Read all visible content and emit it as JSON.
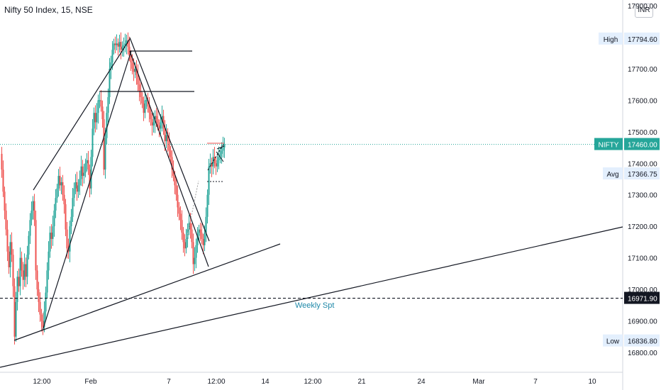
{
  "header": {
    "symbol_title": "Nifty 50 Index, 15, NSE",
    "currency": "INR"
  },
  "chart_data": {
    "type": "candlestick",
    "title": "Nifty 50 Index, 15, NSE",
    "ylim": [
      16750,
      18000
    ],
    "y_ticks": [
      "17900.00",
      "17800.00",
      "17700.00",
      "17600.00",
      "17500.00",
      "17400.00",
      "17300.00",
      "17200.00",
      "17100.00",
      "17000.00",
      "16900.00",
      "16800.00"
    ],
    "y_tick_values": [
      17900,
      17800,
      17700,
      17600,
      17500,
      17400,
      17300,
      17200,
      17100,
      17000,
      16900,
      16800
    ],
    "x_ticks": [
      "12:00",
      "Feb",
      "7",
      "12:00",
      "14",
      "12:00",
      "21",
      "24",
      "Mar",
      "7",
      "10"
    ],
    "price_labels": {
      "high": {
        "label": "High",
        "value": "17794.60"
      },
      "last": {
        "label": "NIFTY",
        "value": "17460.00"
      },
      "avg": {
        "label": "Avg",
        "value": "17366.75"
      },
      "support": {
        "value": "16971.90"
      },
      "low": {
        "label": "Low",
        "value": "16836.80"
      }
    },
    "annotations": [
      "Weekly Spt"
    ],
    "high": 17794.6,
    "low": 16836.8,
    "last": 17460.0,
    "avg": 17366.75,
    "support_level": 16971.9,
    "colors": {
      "up": "#26a69a",
      "down": "#ef5350",
      "last_price": "#2962ff",
      "label_bg": "#e3effd",
      "support_text": "#1e88a8"
    }
  }
}
